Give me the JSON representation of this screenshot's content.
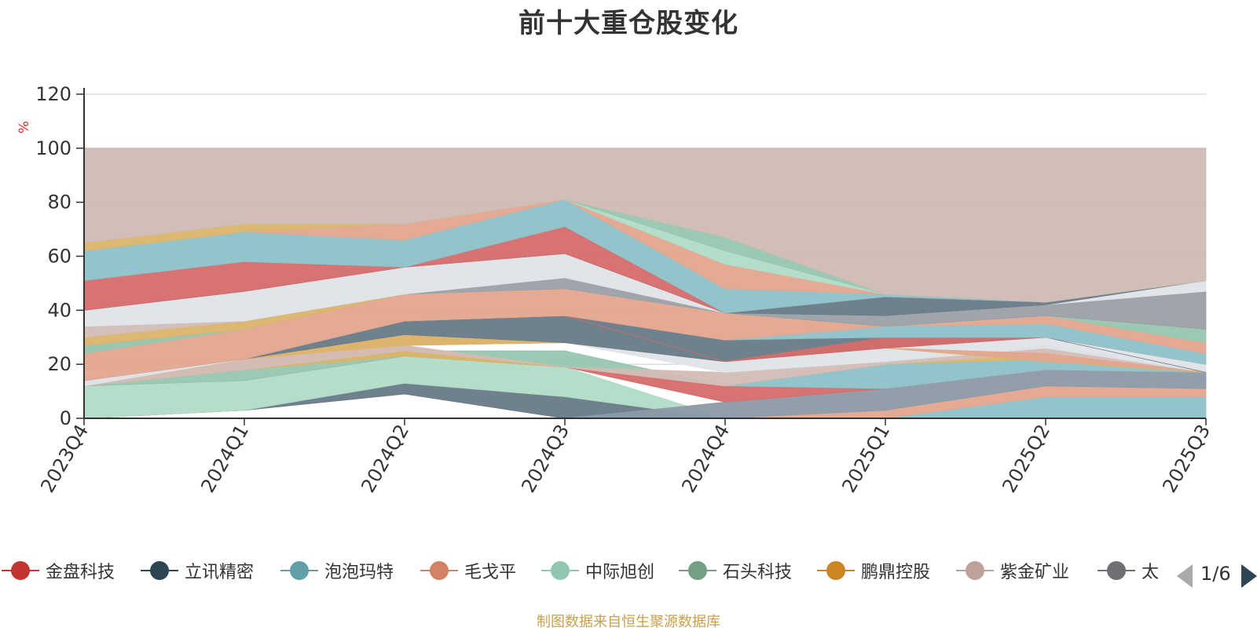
{
  "chart_data": {
    "type": "area",
    "title": "前十大重仓股变化",
    "ylabel": "%",
    "ylim": [
      0,
      120
    ],
    "yticks": [
      0,
      20,
      40,
      60,
      80,
      100,
      120
    ],
    "categories": [
      "2023Q4",
      "2024Q1",
      "2024Q2",
      "2024Q3",
      "2024Q4",
      "2025Q1",
      "2025Q2",
      "2025Q3"
    ],
    "stacked": true,
    "grid": true,
    "legend_position": "bottom",
    "bands": [
      {
        "color": "#d56b6b",
        "lower": [
          0,
          3,
          9,
          0,
          0,
          0,
          0,
          0
        ],
        "upper": [
          0,
          3,
          9,
          0,
          0,
          0,
          0,
          0
        ]
      },
      {
        "color": "#687a88",
        "lower": [
          0,
          3,
          9,
          0,
          0,
          0,
          0,
          0
        ],
        "upper": [
          0,
          3,
          13,
          8,
          0,
          0,
          0,
          0
        ]
      },
      {
        "color": "#b0dbc7",
        "lower": [
          0,
          3,
          13,
          8,
          0,
          0,
          0,
          0
        ],
        "upper": [
          12,
          14,
          23,
          19,
          0,
          0,
          0,
          0
        ]
      },
      {
        "color": "#8dc1c8",
        "lower": [
          0,
          0,
          0,
          0,
          0,
          0,
          0,
          0
        ],
        "upper": [
          0,
          0,
          0,
          0,
          0,
          0,
          8,
          8
        ]
      },
      {
        "color": "#e3a58e",
        "lower": [
          0,
          0,
          0,
          0,
          0,
          0,
          8,
          8
        ],
        "upper": [
          0,
          0,
          0,
          0,
          0,
          3,
          12,
          11
        ]
      },
      {
        "color": "#8c9aa6",
        "lower": [
          0,
          0,
          0,
          0,
          0,
          3,
          12,
          11
        ],
        "upper": [
          0,
          0,
          0,
          0,
          6,
          11,
          18,
          17
        ]
      },
      {
        "color": "#d56b6b",
        "lower": [
          12,
          14,
          23,
          19,
          6,
          11,
          18,
          17
        ],
        "upper": [
          12,
          14,
          23,
          19,
          12,
          11,
          18,
          17
        ]
      },
      {
        "color": "#8dc1c8",
        "lower": [
          12,
          14,
          23,
          19,
          12,
          11,
          18,
          17
        ],
        "upper": [
          12,
          14,
          23,
          19,
          12,
          20,
          22,
          17
        ]
      },
      {
        "color": "#96c6b0",
        "lower": [
          12,
          14,
          23,
          19,
          12,
          20,
          22,
          17
        ],
        "upper": [
          12,
          18,
          25,
          25,
          12,
          20,
          22,
          17
        ]
      },
      {
        "color": "#dbb46a",
        "lower": [
          12,
          18,
          23,
          19,
          12,
          20,
          22,
          17
        ],
        "upper": [
          12,
          22,
          27,
          19,
          12,
          20,
          24,
          17
        ]
      },
      {
        "color": "#d3bcb5",
        "lower": [
          12,
          18,
          25,
          19,
          12,
          20,
          24,
          17
        ],
        "upper": [
          14,
          22,
          27,
          19,
          17,
          21,
          27,
          17
        ]
      },
      {
        "color": "#dfe3e8",
        "lower": [
          12,
          22,
          27,
          28,
          17,
          21,
          26,
          17
        ],
        "upper": [
          14,
          22,
          27,
          28,
          21,
          26,
          30,
          20
        ]
      },
      {
        "color": "#e3a58e",
        "lower": [
          14,
          22,
          27,
          28,
          21,
          26,
          21,
          17
        ],
        "upper": [
          14,
          22,
          31,
          28,
          21,
          26,
          24,
          17
        ]
      },
      {
        "color": "#dbb46a",
        "lower": [
          14,
          22,
          27,
          28,
          21,
          26,
          21,
          17
        ],
        "upper": [
          14,
          22,
          31,
          28,
          21,
          26,
          21,
          17
        ]
      },
      {
        "color": "#687a88",
        "lower": [
          14,
          22,
          31,
          28,
          21,
          26,
          30,
          17
        ],
        "upper": [
          14,
          22,
          36,
          38,
          29,
          30,
          30,
          17
        ]
      },
      {
        "color": "#d56b6b",
        "lower": [
          14,
          22,
          36,
          38,
          21,
          26,
          30,
          20
        ],
        "upper": [
          14,
          22,
          36,
          38,
          21,
          30,
          30,
          20
        ]
      },
      {
        "color": "#8dc1c8",
        "lower": [
          14,
          22,
          36,
          38,
          29,
          30,
          30,
          20
        ],
        "upper": [
          14,
          22,
          36,
          38,
          29,
          34,
          35,
          24
        ]
      },
      {
        "color": "#e3a58e",
        "lower": [
          14,
          22,
          36,
          38,
          29,
          34,
          35,
          24
        ],
        "upper": [
          27,
          33,
          46,
          48,
          39,
          34,
          38,
          28
        ]
      },
      {
        "color": "#96c6b0",
        "lower": [
          24,
          33,
          46,
          48,
          39,
          34,
          38,
          28
        ],
        "upper": [
          27,
          33,
          46,
          48,
          39,
          34,
          38,
          33
        ]
      },
      {
        "color": "#dbb46a",
        "lower": [
          27,
          33,
          46,
          48,
          39,
          34,
          38,
          33
        ],
        "upper": [
          30,
          36,
          46,
          48,
          39,
          34,
          38,
          33
        ]
      },
      {
        "color": "#d3bcb5",
        "lower": [
          30,
          36,
          46,
          48,
          39,
          34,
          38,
          33
        ],
        "upper": [
          34,
          36,
          46,
          48,
          39,
          34,
          38,
          33
        ]
      },
      {
        "color": "#9aa0a6",
        "lower": [
          34,
          36,
          46,
          48,
          39,
          34,
          38,
          33
        ],
        "upper": [
          34,
          36,
          46,
          52,
          39,
          38,
          42,
          47
        ]
      },
      {
        "color": "#dfe3e8",
        "lower": [
          34,
          36,
          46,
          52,
          39,
          38,
          42,
          47
        ],
        "upper": [
          40,
          47,
          56,
          61,
          39,
          38,
          42,
          51
        ]
      },
      {
        "color": "#687a88",
        "lower": [
          40,
          47,
          56,
          61,
          39,
          38,
          42,
          51
        ],
        "upper": [
          40,
          47,
          56,
          61,
          39,
          45,
          43,
          51
        ]
      },
      {
        "color": "#d56b6b",
        "lower": [
          40,
          47,
          56,
          61,
          39,
          45,
          43,
          51
        ],
        "upper": [
          51,
          58,
          56,
          71,
          39,
          45,
          43,
          51
        ]
      },
      {
        "color": "#8dc1c8",
        "lower": [
          51,
          58,
          56,
          71,
          39,
          45,
          43,
          51
        ],
        "upper": [
          62,
          69,
          66,
          81,
          48,
          46,
          43,
          51
        ]
      },
      {
        "color": "#e3a58e",
        "lower": [
          62,
          69,
          66,
          81,
          48,
          46,
          43,
          51
        ],
        "upper": [
          62,
          69,
          72,
          81,
          57,
          46,
          43,
          51
        ]
      },
      {
        "color": "#b0dbc7",
        "lower": [
          62,
          69,
          72,
          81,
          57,
          46,
          43,
          51
        ],
        "upper": [
          62,
          69,
          72,
          81,
          62,
          46,
          43,
          51
        ]
      },
      {
        "color": "#96c6b0",
        "lower": [
          62,
          69,
          72,
          81,
          62,
          46,
          43,
          51
        ],
        "upper": [
          62,
          69,
          72,
          81,
          67,
          46,
          43,
          51
        ]
      },
      {
        "color": "#dbb46a",
        "lower": [
          62,
          69,
          72,
          81,
          67,
          46,
          43,
          51
        ],
        "upper": [
          65,
          72,
          72,
          81,
          67,
          46,
          43,
          51
        ]
      },
      {
        "color": "#cfbbb5",
        "lower": [
          65,
          72,
          72,
          81,
          67,
          46,
          43,
          51
        ],
        "upper": [
          100,
          100,
          100,
          100,
          100,
          100,
          100,
          100
        ]
      }
    ],
    "legend": [
      {
        "name": "金盘科技",
        "color": "#c23531"
      },
      {
        "name": "立讯精密",
        "color": "#2f4554"
      },
      {
        "name": "泡泡玛特",
        "color": "#61a0a8"
      },
      {
        "name": "毛戈平",
        "color": "#d48265"
      },
      {
        "name": "中际旭创",
        "color": "#91c7ae"
      },
      {
        "name": "石头科技",
        "color": "#749f83"
      },
      {
        "name": "鹏鼎控股",
        "color": "#ca8622"
      },
      {
        "name": "紫金矿业",
        "color": "#bda29a"
      },
      {
        "name": "太",
        "color": "#6e7074"
      }
    ]
  },
  "title_text": "前十大重仓股变化",
  "y_unit": "%",
  "legend_page": "1/6",
  "source_note": "制图数据来自恒生聚源数据库"
}
